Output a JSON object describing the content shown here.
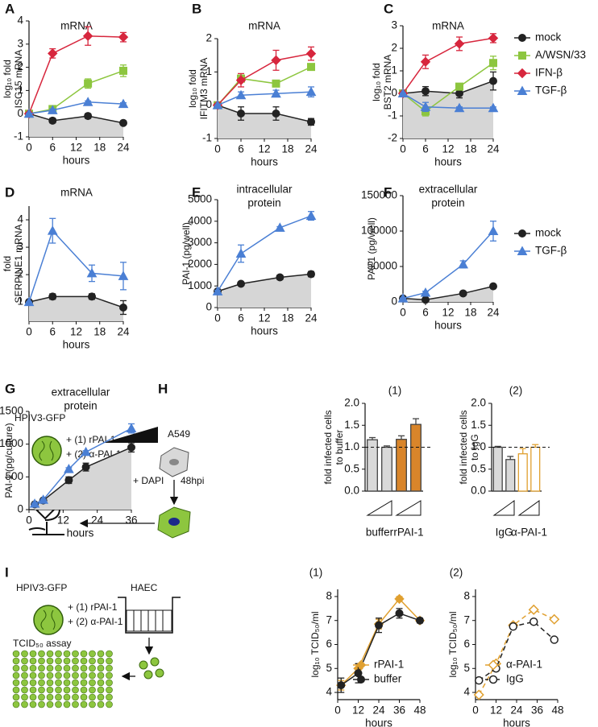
{
  "chart_data": [
    {
      "type": "line",
      "label": "A",
      "title": [
        "mRNA"
      ],
      "y_label": [
        "log₁₀ fold",
        "ISG15 mRNA"
      ],
      "x_label": "hours",
      "xlim": [
        0,
        24
      ],
      "xticks": [
        0,
        6,
        12,
        18,
        24
      ],
      "ylim": [
        -1,
        4
      ],
      "yticks": [
        -1,
        0,
        1,
        2,
        3,
        4
      ],
      "legend": false,
      "x": [
        0,
        6,
        15,
        24
      ],
      "series": [
        {
          "name": "mock",
          "color": "#222222",
          "marker": "circle",
          "area": true,
          "values": [
            0,
            -0.3,
            -0.1,
            -0.4
          ],
          "errors": [
            0,
            0.1,
            0.1,
            0.05
          ]
        },
        {
          "name": "A/WSN/33",
          "color": "#8dc63f",
          "marker": "square",
          "values": [
            0,
            0.2,
            1.3,
            1.85
          ],
          "errors": [
            0,
            0.1,
            0.2,
            0.25
          ]
        },
        {
          "name": "IFN-β",
          "color": "#d7263d",
          "marker": "diamond",
          "values": [
            0,
            2.6,
            3.35,
            3.3
          ],
          "errors": [
            0,
            0.2,
            0.4,
            0.2
          ]
        },
        {
          "name": "TGF-β",
          "color": "#4a7fd4",
          "marker": "triangle",
          "values": [
            0,
            0.15,
            0.5,
            0.42
          ],
          "errors": [
            0,
            0.05,
            0.05,
            0.05
          ]
        }
      ]
    },
    {
      "type": "line",
      "label": "B",
      "title": [
        "mRNA"
      ],
      "y_label": [
        "log₁₀ fold",
        "IFITM3 mRNA"
      ],
      "x_label": "hours",
      "xlim": [
        0,
        24
      ],
      "xticks": [
        0,
        6,
        12,
        18,
        24
      ],
      "ylim": [
        -1,
        2
      ],
      "yticks": [
        -1,
        0,
        1,
        2
      ],
      "legend": false,
      "x": [
        0,
        6,
        15,
        24
      ],
      "series": [
        {
          "name": "mock",
          "color": "#222222",
          "marker": "circle",
          "area": true,
          "values": [
            0,
            -0.25,
            -0.25,
            -0.5
          ],
          "errors": [
            0,
            0.2,
            0.2,
            0.1
          ]
        },
        {
          "name": "A/WSN/33",
          "color": "#8dc63f",
          "marker": "square",
          "values": [
            0,
            0.8,
            0.65,
            1.15
          ],
          "errors": [
            0,
            0.1,
            0.05,
            0.05
          ]
        },
        {
          "name": "IFN-β",
          "color": "#d7263d",
          "marker": "diamond",
          "values": [
            0,
            0.75,
            1.35,
            1.55
          ],
          "errors": [
            0,
            0.2,
            0.3,
            0.2
          ]
        },
        {
          "name": "TGF-β",
          "color": "#4a7fd4",
          "marker": "triangle",
          "values": [
            0,
            0.3,
            0.35,
            0.4
          ],
          "errors": [
            0,
            0.1,
            0.1,
            0.15
          ]
        }
      ]
    },
    {
      "type": "line",
      "label": "C",
      "title": [
        "mRNA"
      ],
      "y_label": [
        "log₁₀ fold",
        "BST2 mRNA"
      ],
      "x_label": "hours",
      "xlim": [
        0,
        24
      ],
      "xticks": [
        0,
        6,
        12,
        18,
        24
      ],
      "ylim": [
        -2,
        3
      ],
      "yticks": [
        -2,
        -1,
        0,
        1,
        2,
        3
      ],
      "legend": true,
      "x": [
        0,
        6,
        15,
        24
      ],
      "series": [
        {
          "name": "mock",
          "color": "#222222",
          "marker": "circle",
          "area": true,
          "values": [
            0,
            0.1,
            0,
            0.55
          ],
          "errors": [
            0,
            0.2,
            0.2,
            0.4
          ]
        },
        {
          "name": "A/WSN/33",
          "color": "#8dc63f",
          "marker": "square",
          "values": [
            0,
            -0.8,
            0.3,
            1.35
          ],
          "errors": [
            0,
            0.2,
            0.1,
            0.3
          ]
        },
        {
          "name": "IFN-β",
          "color": "#d7263d",
          "marker": "diamond",
          "values": [
            0,
            1.4,
            2.2,
            2.45
          ],
          "errors": [
            0,
            0.3,
            0.3,
            0.2
          ]
        },
        {
          "name": "TGF-β",
          "color": "#4a7fd4",
          "marker": "triangle",
          "values": [
            0,
            -0.6,
            -0.65,
            -0.65
          ],
          "errors": [
            0,
            0.2,
            0.05,
            0.05
          ]
        }
      ]
    },
    {
      "type": "line",
      "label": "D",
      "title": [
        "mRNA"
      ],
      "y_label": [
        "fold",
        "SERPINE1 mRNA"
      ],
      "x_label": "hours",
      "xlim": [
        0,
        24
      ],
      "xticks": [
        0,
        6,
        12,
        18,
        24
      ],
      "ylim": [
        0.3,
        4.5
      ],
      "yticks": [
        1,
        2,
        3,
        4
      ],
      "legend": false,
      "x": [
        0,
        6,
        16,
        24
      ],
      "series": [
        {
          "name": "mock",
          "color": "#222222",
          "marker": "circle",
          "area": true,
          "values": [
            1,
            1.2,
            1.2,
            0.8
          ],
          "errors": [
            0,
            0.1,
            0.1,
            0.25
          ]
        },
        {
          "name": "TGF-β",
          "color": "#4a7fd4",
          "marker": "triangle",
          "values": [
            1,
            3.6,
            2.05,
            1.95
          ],
          "errors": [
            0,
            0.45,
            0.3,
            0.5
          ]
        }
      ]
    },
    {
      "type": "line",
      "label": "E",
      "title": [
        "intracellular",
        "protein"
      ],
      "y_label": [
        "PAI-1 (pg/well)"
      ],
      "x_label": "hours",
      "xlim": [
        0,
        24
      ],
      "xticks": [
        0,
        6,
        12,
        18,
        24
      ],
      "ylim": [
        0,
        5000
      ],
      "yticks": [
        0,
        1000,
        2000,
        3000,
        4000,
        5000
      ],
      "legend": false,
      "x": [
        0,
        6,
        16,
        24
      ],
      "series": [
        {
          "name": "mock",
          "color": "#222222",
          "marker": "circle",
          "area": true,
          "values": [
            750,
            1100,
            1400,
            1550
          ],
          "errors": [
            50,
            50,
            100,
            120
          ]
        },
        {
          "name": "TGF-β",
          "color": "#4a7fd4",
          "marker": "triangle",
          "values": [
            750,
            2500,
            3700,
            4250
          ],
          "errors": [
            50,
            400,
            50,
            200
          ]
        }
      ]
    },
    {
      "type": "line",
      "label": "F",
      "title": [
        "extracellular",
        "protein"
      ],
      "y_label": [
        "PAI-1 (pg/well)"
      ],
      "x_label": "hours",
      "xlim": [
        0,
        24
      ],
      "xticks": [
        0,
        6,
        12,
        18,
        24
      ],
      "ylim": [
        0,
        150000
      ],
      "yticks": [
        0,
        50000,
        100000,
        150000
      ],
      "legend": true,
      "x": [
        0,
        6,
        16,
        24
      ],
      "series": [
        {
          "name": "mock",
          "color": "#222222",
          "marker": "circle",
          "area": true,
          "values": [
            5000,
            3000,
            12000,
            22000
          ],
          "errors": [
            500,
            500,
            1000,
            1500
          ]
        },
        {
          "name": "TGF-β",
          "color": "#4a7fd4",
          "marker": "triangle",
          "values": [
            5000,
            13000,
            53000,
            100000
          ],
          "errors": [
            500,
            2000,
            5000,
            14000
          ]
        }
      ]
    },
    {
      "type": "line",
      "label": "G",
      "title": [
        "extracellular",
        "protein"
      ],
      "y_label": [
        "PAI-1 (pg/culture)"
      ],
      "x_label": "hours",
      "xlim": [
        0,
        36
      ],
      "xticks": [
        0,
        12,
        24,
        36
      ],
      "ylim": [
        0,
        1500
      ],
      "yticks": [
        0,
        500,
        1000,
        1500
      ],
      "legend": false,
      "x": [
        2,
        5,
        14,
        20,
        36
      ],
      "series": [
        {
          "name": "mock",
          "color": "#222222",
          "marker": "circle",
          "area": true,
          "values": [
            80,
            140,
            450,
            650,
            950
          ],
          "errors": [
            20,
            20,
            50,
            60,
            70
          ]
        },
        {
          "name": "TGF-β",
          "color": "#4a7fd4",
          "marker": "triangle",
          "values": [
            90,
            150,
            620,
            880,
            1240
          ],
          "errors": [
            10,
            10,
            20,
            20,
            70
          ]
        }
      ]
    },
    {
      "type": "bar",
      "label": "H",
      "title": [
        "(1)"
      ],
      "y_label": [
        "fold infected cells",
        "to buffer"
      ],
      "ylim": [
        0,
        2
      ],
      "yticks": [
        {
          "value": 0,
          "label": "0.0"
        },
        {
          "value": 0.5,
          "label": "0.5"
        },
        {
          "value": 1,
          "label": "1.0"
        },
        {
          "value": 1.5,
          "label": "1.5"
        },
        {
          "value": 2,
          "label": "2.0"
        }
      ],
      "reference_line": 1,
      "groups": [
        "buffer",
        "rPAI-1"
      ],
      "values": [
        1.17,
        1.0,
        1.18,
        1.52
      ],
      "errors": [
        0.05,
        0.03,
        0.08,
        0.13
      ],
      "colors": [
        "#d9d9d9",
        "#d9d9d9",
        "#d9852a",
        "#d9852a"
      ],
      "edge_colors": [
        "#444444",
        "#444444",
        "#444444",
        "#444444"
      ]
    },
    {
      "type": "bar",
      "title": [
        "(2)"
      ],
      "y_label": [
        "fold infected cells",
        "to IgG"
      ],
      "ylim": [
        0,
        2
      ],
      "yticks": [
        {
          "value": 0,
          "label": "0.0"
        },
        {
          "value": 0.5,
          "label": "0.5"
        },
        {
          "value": 1,
          "label": "1.0"
        },
        {
          "value": 1.5,
          "label": "1.5"
        },
        {
          "value": 2,
          "label": "2.0"
        }
      ],
      "reference_line": 1,
      "groups": [
        "IgG",
        "α-PAI-1"
      ],
      "values": [
        1.0,
        0.72,
        0.85,
        1.0
      ],
      "errors": [
        0.02,
        0.07,
        0.12,
        0.06
      ],
      "colors": [
        "#d9d9d9",
        "#d9d9d9",
        "#ffffff",
        "#ffffff"
      ],
      "edge_colors": [
        "#444444",
        "#444444",
        "#e0a030",
        "#e0a030"
      ]
    },
    {
      "type": "line",
      "label": "I",
      "title": [
        "(1)"
      ],
      "y_label": [
        "log₁₀ TCID₅₀/ml"
      ],
      "x_label": "hours",
      "xlim": [
        0,
        48
      ],
      "xticks": [
        0,
        12,
        24,
        36,
        48
      ],
      "ylim": [
        3.7,
        8.3
      ],
      "yticks": [
        4,
        5,
        6,
        7,
        8
      ],
      "legend": true,
      "x": [
        2,
        12,
        24,
        36,
        48
      ],
      "series": [
        {
          "name": "rPAI-1",
          "color": "#e0a030",
          "marker": "diamond",
          "values": [
            4.3,
            5.0,
            6.85,
            7.9,
            7.0
          ],
          "errors": [
            0.2,
            0.2,
            0.2,
            0.1,
            0.1
          ]
        },
        {
          "name": "buffer",
          "color": "#222222",
          "marker": "circle",
          "values": [
            4.3,
            4.8,
            6.8,
            7.3,
            7.0
          ],
          "errors": [
            0.3,
            0.4,
            0.3,
            0.2,
            0.1
          ]
        }
      ]
    },
    {
      "type": "line",
      "title": [
        "(2)"
      ],
      "y_label": [
        "log₁₀ TCID₅₀/ml"
      ],
      "x_label": "hours",
      "xlim": [
        0,
        48
      ],
      "xticks": [
        0,
        12,
        24,
        36,
        48
      ],
      "ylim": [
        3.7,
        8.3
      ],
      "yticks": [
        4,
        5,
        6,
        7,
        8
      ],
      "legend": true,
      "x": [
        2,
        12,
        22,
        34,
        46
      ],
      "series": [
        {
          "name": "α-PAI-1",
          "color": "#e0a030",
          "marker": "diamond",
          "open": true,
          "dashed": true,
          "values": [
            3.9,
            5.2,
            6.8,
            7.45,
            7.05
          ]
        },
        {
          "name": "IgG",
          "color": "#222222",
          "marker": "circle",
          "open": true,
          "dashed": true,
          "values": [
            4.5,
            5.0,
            6.75,
            6.95,
            6.2
          ]
        }
      ]
    }
  ],
  "diagrams": {
    "h": {
      "virus": "HPIV3-GFP",
      "treat_1": "+ (1) rPAI-1",
      "treat_2": "+ (2) α-PAI-1",
      "cells": "A549",
      "stain": "+ DAPI",
      "time": "48hpi"
    },
    "i": {
      "virus": "HPIV3-GFP",
      "treat_1": "+ (1) rPAI-1",
      "treat_2": "+ (2) α-PAI-1",
      "cells": "HAEC",
      "assay": "TCID₅₀ assay"
    }
  }
}
